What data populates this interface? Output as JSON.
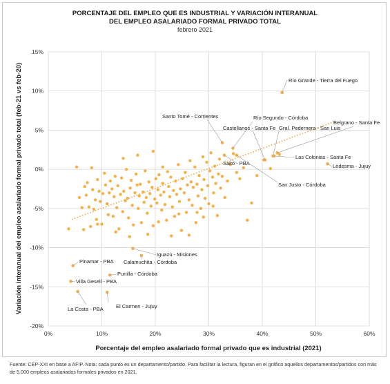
{
  "chart_data": {
    "type": "scatter",
    "title_lines": [
      "PORCENTAJE DEL EMPLEO QUE ES INDUSTRIAL Y VARIACIÓN INTERANUAL",
      "DEL EMPLEO ASALARIADO FORMAL PRIVADO TOTAL"
    ],
    "subtitle": "febrero 2021",
    "xlabel": "Porcentaje del empleo asalariado formal privado que es industrial (2021)",
    "ylabel": "Variación interanual del empleo asalariado formal privado total (feb-21 vs feb-20)",
    "xlim": [
      0,
      60
    ],
    "ylim": [
      -20,
      15
    ],
    "xticks": [
      0,
      10,
      20,
      30,
      40,
      50,
      60
    ],
    "yticks": [
      -20,
      -15,
      -10,
      -5,
      0,
      5,
      10,
      15
    ],
    "xtick_labels": [
      "0%",
      "10%",
      "20%",
      "30%",
      "40%",
      "50%",
      "60%"
    ],
    "ytick_labels": [
      "-20%",
      "-15%",
      "-10%",
      "-5%",
      "0%",
      "5%",
      "10%",
      "15%"
    ],
    "grid": true,
    "point_color": "#f6b04a",
    "trendline": {
      "style": "dotted",
      "color": "#f5a640",
      "from": [
        4.4,
        -6.4
      ],
      "to": [
        53.5,
        6.1
      ]
    },
    "labeled_points": [
      {
        "name": "Río Grande - Tierra del Fuego",
        "x": 43.7,
        "y": 9.8
      },
      {
        "name": "Santo Tomé - Corrientes",
        "x": 32.5,
        "y": 3.4
      },
      {
        "name": "Río Segundo - Córdoba",
        "x": 34.5,
        "y": 2.7
      },
      {
        "name": "Castellanos - Santa Fe",
        "x": 40.5,
        "y": 1.2
      },
      {
        "name": "Gral. Pedernera - San Luis",
        "x": 42.0,
        "y": 1.7
      },
      {
        "name": "Belgrano - Santa Fe",
        "x": 42.8,
        "y": 2.1
      },
      {
        "name": "Salto - PBA",
        "x": 32.9,
        "y": 1.8
      },
      {
        "name": "Las Colonias - Santa Fe",
        "x": 42.2,
        "y": 1.7
      },
      {
        "name": "Ledesma - Jujuy",
        "x": 52.2,
        "y": 0.7
      },
      {
        "name": "San Justo - Córdoba",
        "x": 35.2,
        "y": 1.8
      },
      {
        "name": "Iguazú - Misiones",
        "x": 15.8,
        "y": -10.1
      },
      {
        "name": "Calamuchita - Córdoba",
        "x": 17.4,
        "y": -11.0
      },
      {
        "name": "Pinamar - PBA",
        "x": 4.6,
        "y": -12.3
      },
      {
        "name": "Punilla - Córdoba",
        "x": 11.5,
        "y": -13.5
      },
      {
        "name": "Villa Gesell - PBA",
        "x": 4.2,
        "y": -14.3
      },
      {
        "name": "La Costa - PBA",
        "x": 5.5,
        "y": -15.6
      },
      {
        "name": "El Carmen - Jujuy",
        "x": 11.0,
        "y": -15.7
      }
    ],
    "points": [
      [
        3.8,
        -7.6
      ],
      [
        5.3,
        0.3
      ],
      [
        5.8,
        -3.6
      ],
      [
        6.3,
        -4.9
      ],
      [
        6.6,
        -7.7
      ],
      [
        6.8,
        -2.2
      ],
      [
        7.1,
        -3.3
      ],
      [
        7.3,
        -1.7
      ],
      [
        7.6,
        -4.8
      ],
      [
        7.9,
        -7.3
      ],
      [
        8.1,
        0.2
      ],
      [
        8.3,
        -2.6
      ],
      [
        8.5,
        -5.1
      ],
      [
        8.8,
        -3.9
      ],
      [
        9.0,
        -6.4
      ],
      [
        9.2,
        -1.3
      ],
      [
        9.5,
        -2.8
      ],
      [
        9.7,
        -4.1
      ],
      [
        10.0,
        -7.0
      ],
      [
        10.2,
        -3.1
      ],
      [
        10.5,
        -0.5
      ],
      [
        10.7,
        -2.0
      ],
      [
        11.0,
        -4.4
      ],
      [
        11.2,
        -5.8
      ],
      [
        11.4,
        -3.0
      ],
      [
        11.6,
        -1.5
      ],
      [
        11.9,
        -2.5
      ],
      [
        12.1,
        -6.0
      ],
      [
        12.3,
        -3.5
      ],
      [
        12.5,
        -0.9
      ],
      [
        12.8,
        -4.9
      ],
      [
        13.0,
        -2.1
      ],
      [
        13.2,
        -7.6
      ],
      [
        13.5,
        -3.2
      ],
      [
        13.7,
        -1.1
      ],
      [
        13.9,
        -5.4
      ],
      [
        14.1,
        -2.8
      ],
      [
        14.4,
        -4.0
      ],
      [
        14.6,
        0.0
      ],
      [
        14.8,
        -3.7
      ],
      [
        15.0,
        -6.2
      ],
      [
        15.3,
        -2.4
      ],
      [
        15.5,
        -1.4
      ],
      [
        15.7,
        -4.6
      ],
      [
        15.9,
        -7.1
      ],
      [
        16.2,
        -3.0
      ],
      [
        16.4,
        -0.6
      ],
      [
        16.6,
        -2.0
      ],
      [
        16.8,
        -5.0
      ],
      [
        17.0,
        -3.4
      ],
      [
        17.2,
        -1.9
      ],
      [
        17.4,
        -6.8
      ],
      [
        17.7,
        -2.9
      ],
      [
        17.9,
        -4.2
      ],
      [
        18.1,
        -0.2
      ],
      [
        18.3,
        -3.6
      ],
      [
        18.5,
        -5.6
      ],
      [
        18.8,
        -1.6
      ],
      [
        19.0,
        -3.1
      ],
      [
        19.2,
        -4.7
      ],
      [
        19.4,
        -2.3
      ],
      [
        19.6,
        -7.2
      ],
      [
        19.9,
        -3.8
      ],
      [
        20.1,
        -1.2
      ],
      [
        20.3,
        -4.3
      ],
      [
        20.5,
        -2.6
      ],
      [
        20.7,
        -0.7
      ],
      [
        21.0,
        -3.3
      ],
      [
        21.2,
        -5.2
      ],
      [
        21.4,
        -1.8
      ],
      [
        21.6,
        -2.9
      ],
      [
        21.8,
        -4.5
      ],
      [
        22.1,
        -6.5
      ],
      [
        22.3,
        -0.3
      ],
      [
        22.5,
        -2.2
      ],
      [
        22.7,
        -3.5
      ],
      [
        22.9,
        -1.0
      ],
      [
        23.2,
        -4.8
      ],
      [
        23.4,
        -2.7
      ],
      [
        23.6,
        -6.0
      ],
      [
        23.8,
        -1.5
      ],
      [
        24.0,
        -3.2
      ],
      [
        24.3,
        0.6
      ],
      [
        24.5,
        -4.1
      ],
      [
        24.7,
        -2.5
      ],
      [
        24.9,
        -7.8
      ],
      [
        25.1,
        -1.2
      ],
      [
        25.4,
        -3.0
      ],
      [
        25.6,
        -0.4
      ],
      [
        25.8,
        -5.5
      ],
      [
        26.0,
        -2.0
      ],
      [
        26.3,
        -3.9
      ],
      [
        26.5,
        1.1
      ],
      [
        26.7,
        -1.6
      ],
      [
        26.9,
        -4.6
      ],
      [
        27.1,
        -2.3
      ],
      [
        27.4,
        0.3
      ],
      [
        27.6,
        -6.8
      ],
      [
        27.8,
        -1.9
      ],
      [
        28.0,
        -3.4
      ],
      [
        28.2,
        -0.8
      ],
      [
        28.5,
        -5.0
      ],
      [
        28.7,
        -2.6
      ],
      [
        28.9,
        1.6
      ],
      [
        29.1,
        -1.3
      ],
      [
        29.3,
        -3.7
      ],
      [
        29.6,
        0.9
      ],
      [
        29.8,
        -2.1
      ],
      [
        30.0,
        -4.4
      ],
      [
        30.2,
        -0.2
      ],
      [
        30.4,
        2.1
      ],
      [
        30.7,
        -1.0
      ],
      [
        30.9,
        -3.0
      ],
      [
        31.1,
        0.4
      ],
      [
        31.3,
        -1.8
      ],
      [
        31.6,
        -5.9
      ],
      [
        31.8,
        -0.6
      ],
      [
        32.0,
        1.3
      ],
      [
        32.2,
        -2.4
      ],
      [
        32.5,
        -0.9
      ],
      [
        33.0,
        -3.6
      ],
      [
        33.5,
        -1.5
      ],
      [
        34.0,
        0.6
      ],
      [
        34.6,
        2.0
      ],
      [
        35.2,
        -0.4
      ],
      [
        35.8,
        -1.2
      ],
      [
        36.5,
        0.2
      ],
      [
        37.2,
        -6.5
      ],
      [
        38.0,
        -4.3
      ],
      [
        39.0,
        -0.8
      ],
      [
        40.3,
        1.2
      ],
      [
        41.5,
        0.1
      ],
      [
        43.2,
        1.9
      ],
      [
        19.6,
        2.3
      ],
      [
        23.0,
        -8.5
      ],
      [
        26.3,
        -8.4
      ],
      [
        29.0,
        -6.1
      ],
      [
        14.0,
        1.4
      ],
      [
        16.7,
        1.8
      ],
      [
        21.4,
        0.3
      ],
      [
        12.6,
        -8.0
      ],
      [
        18.6,
        -8.3
      ],
      [
        24.4,
        -5.7
      ],
      [
        9.2,
        -7.0
      ],
      [
        15.2,
        -8.6
      ],
      [
        20.6,
        -6.7
      ],
      [
        27.8,
        -5.5
      ],
      [
        30.8,
        -4.7
      ]
    ]
  },
  "footer": "Fuente: CEP-XXI en base a AFIP. Nota: cada punto es un departamento/partido. Para facilitar la lectura, figuran en el gráfico aquellos departamentos/partidos con más de 5.000 empleos asalariados formales privados en 2021."
}
